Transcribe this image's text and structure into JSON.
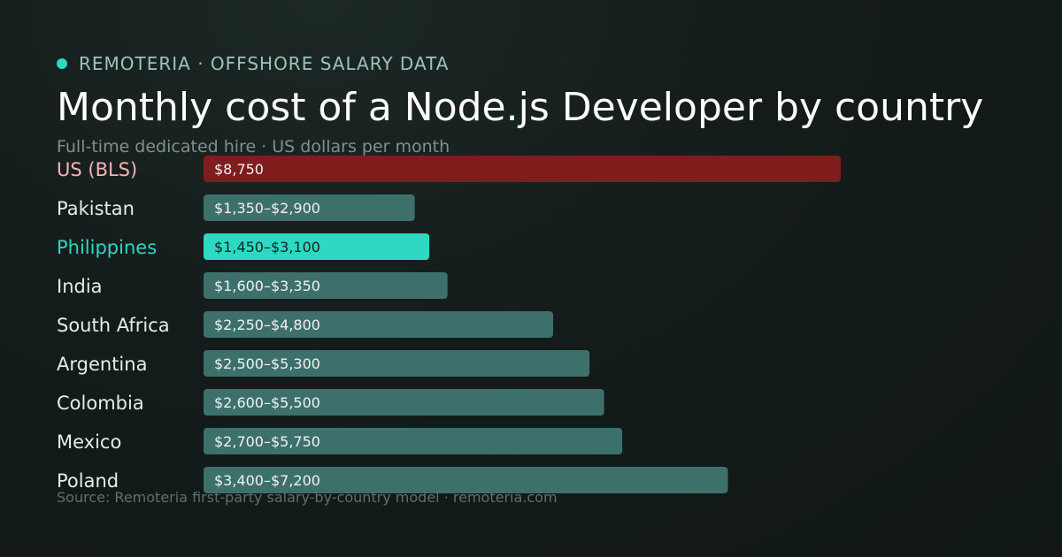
{
  "header": {
    "brand": "REMOTERIA · OFFSHORE SALARY DATA",
    "title": "Monthly cost of a Node.js Developer by country",
    "subtitle": "Full-time dedicated hire · US dollars per month"
  },
  "footer": {
    "source": "Source: Remoteria first-party salary-by-country model · remoteria.com"
  },
  "colors": {
    "accent": "#2ed8c3",
    "us_bar": "#7f1d1d",
    "default_bar": "#3e706b",
    "us_label": "#f8b4b4",
    "highlight_label": "#2ed8c3",
    "default_label": "#e6eceb"
  },
  "chart_data": {
    "type": "bar",
    "orientation": "horizontal",
    "title": "Monthly cost of a Node.js Developer by country",
    "subtitle": "Full-time dedicated hire · US dollars per month",
    "categories": [
      "US (BLS)",
      "Pakistan",
      "Philippines",
      "India",
      "South Africa",
      "Argentina",
      "Colombia",
      "Mexico",
      "Poland"
    ],
    "values": [
      8750,
      2900,
      3100,
      3350,
      4800,
      5300,
      5500,
      5750,
      7200
    ],
    "range_low": [
      8750,
      1350,
      1450,
      1600,
      2250,
      2500,
      2600,
      2700,
      3400
    ],
    "data_labels": [
      "$8,750",
      "$1,350–$2,900",
      "$1,450–$3,100",
      "$1,600–$3,350",
      "$2,250–$4,800",
      "$2,500–$5,300",
      "$2,600–$5,500",
      "$2,700–$5,750",
      "$3,400–$7,200"
    ],
    "highlight": [
      "us",
      "default",
      "accent",
      "default",
      "default",
      "default",
      "default",
      "default",
      "default"
    ],
    "xlim": [
      0,
      8750
    ],
    "grid": false,
    "legend": "none"
  }
}
